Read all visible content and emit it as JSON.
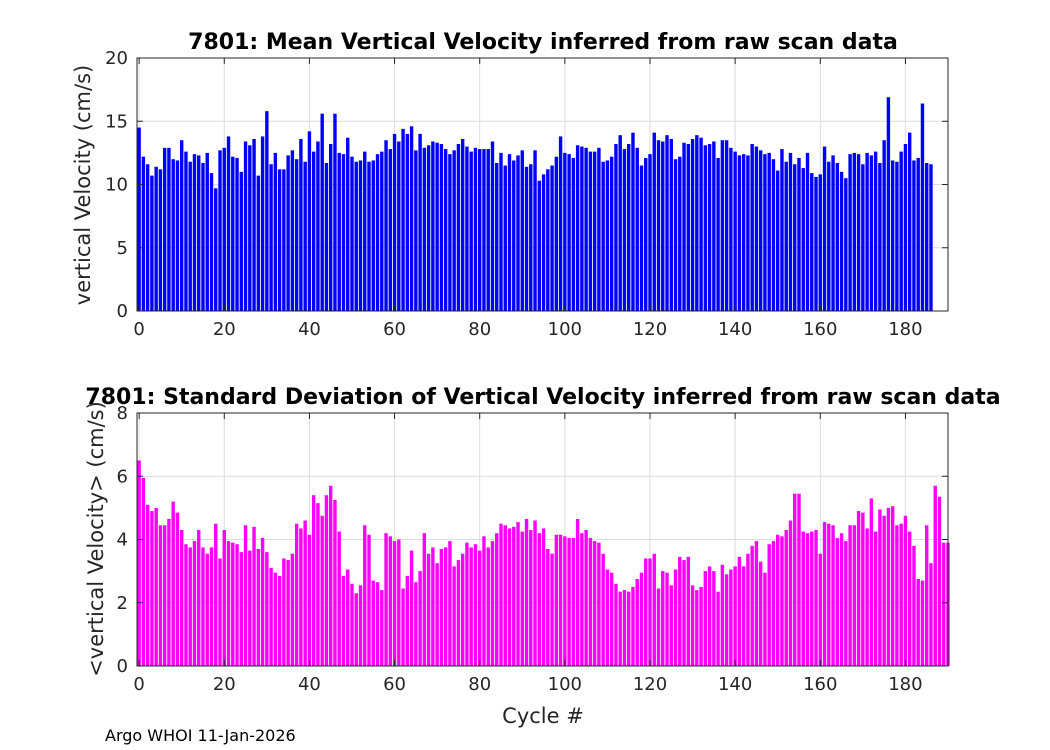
{
  "chart_data": [
    {
      "type": "bar",
      "title": "7801: Mean Vertical Velocity inferred from raw scan data",
      "xlabel": "",
      "ylabel": "vertical Velocity (cm/s)",
      "xlim": [
        -0.5,
        190
      ],
      "ylim": [
        0,
        20
      ],
      "xticks": [
        0,
        20,
        40,
        60,
        80,
        100,
        120,
        140,
        160,
        180
      ],
      "yticks": [
        0,
        5,
        10,
        15,
        20
      ],
      "grid": true,
      "color": "#0000ff",
      "x_start": 0,
      "values": [
        14.5,
        12.2,
        11.6,
        10.7,
        11.4,
        11.2,
        12.9,
        12.9,
        12.0,
        11.9,
        13.5,
        12.6,
        11.8,
        12.4,
        12.3,
        11.7,
        12.5,
        10.9,
        9.7,
        12.7,
        12.9,
        13.8,
        12.2,
        12.1,
        11.0,
        13.4,
        13.1,
        13.6,
        10.7,
        13.8,
        15.8,
        11.6,
        12.5,
        11.2,
        11.2,
        12.3,
        12.7,
        12.0,
        13.6,
        11.8,
        14.2,
        12.6,
        13.4,
        15.6,
        11.7,
        13.2,
        15.6,
        12.5,
        12.4,
        13.7,
        12.2,
        11.8,
        11.9,
        12.6,
        11.8,
        11.9,
        12.4,
        12.6,
        13.5,
        12.8,
        14.0,
        13.4,
        14.4,
        14.0,
        14.6,
        12.7,
        14.0,
        12.9,
        13.1,
        13.4,
        13.3,
        13.2,
        12.8,
        12.4,
        12.7,
        13.2,
        13.6,
        13.0,
        12.6,
        12.9,
        12.8,
        12.8,
        12.8,
        13.4,
        11.7,
        12.5,
        11.5,
        12.4,
        11.9,
        12.3,
        12.7,
        11.4,
        11.6,
        12.7,
        10.3,
        10.8,
        11.2,
        11.5,
        12.2,
        13.8,
        12.5,
        12.4,
        12.1,
        13.1,
        13.0,
        12.9,
        12.6,
        12.6,
        12.9,
        11.8,
        11.9,
        12.2,
        13.2,
        13.9,
        12.8,
        13.2,
        14.1,
        12.9,
        11.5,
        12.1,
        12.4,
        14.1,
        13.5,
        13.4,
        13.9,
        13.6,
        12.0,
        12.2,
        13.3,
        13.2,
        13.6,
        13.9,
        13.7,
        13.1,
        13.2,
        13.4,
        12.1,
        13.5,
        13.5,
        12.9,
        12.6,
        12.3,
        12.4,
        12.3,
        13.2,
        13.0,
        12.7,
        12.4,
        12.5,
        12.0,
        11.1,
        12.8,
        11.8,
        12.5,
        11.6,
        12.1,
        11.3,
        12.5,
        10.9,
        10.6,
        10.8,
        13.0,
        11.8,
        12.3,
        11.7,
        11.0,
        10.5,
        12.4,
        12.5,
        12.4,
        11.6,
        12.5,
        12.3,
        12.6,
        11.7,
        13.5,
        16.9,
        11.9,
        11.8,
        12.6,
        13.2,
        14.1,
        11.9,
        12.1,
        16.4,
        11.7,
        11.6
      ]
    },
    {
      "type": "bar",
      "title": "7801: Standard Deviation of Vertical Velocity inferred from raw scan data",
      "xlabel": "Cycle #",
      "ylabel": "<vertical Velocity> (cm/s)",
      "xlim": [
        -0.5,
        190
      ],
      "ylim": [
        0,
        8
      ],
      "xticks": [
        0,
        20,
        40,
        60,
        80,
        100,
        120,
        140,
        160,
        180
      ],
      "yticks": [
        0,
        2,
        4,
        6,
        8
      ],
      "grid": true,
      "color": "#ff00ff",
      "x_start": 0,
      "values": [
        6.5,
        5.95,
        5.1,
        4.9,
        5.0,
        4.45,
        4.45,
        4.65,
        5.2,
        4.85,
        4.3,
        3.85,
        3.75,
        3.95,
        4.3,
        3.75,
        3.55,
        3.75,
        4.5,
        3.4,
        4.3,
        3.95,
        3.9,
        3.85,
        3.6,
        4.45,
        3.65,
        4.4,
        3.7,
        4.05,
        3.6,
        3.1,
        2.95,
        2.85,
        3.4,
        3.35,
        3.55,
        4.5,
        4.35,
        4.6,
        4.15,
        5.4,
        5.15,
        4.75,
        5.4,
        5.7,
        5.25,
        4.25,
        2.85,
        3.05,
        2.6,
        2.3,
        2.55,
        4.45,
        4.15,
        2.7,
        2.65,
        2.4,
        4.2,
        4.1,
        3.95,
        4.0,
        2.45,
        2.85,
        3.65,
        2.65,
        3.0,
        4.2,
        3.55,
        3.75,
        3.25,
        3.7,
        3.75,
        3.95,
        3.15,
        3.35,
        3.55,
        3.9,
        3.75,
        3.85,
        3.65,
        4.1,
        3.75,
        3.95,
        4.2,
        4.5,
        4.45,
        4.35,
        4.4,
        4.55,
        4.25,
        4.65,
        4.3,
        4.6,
        4.2,
        4.35,
        3.7,
        3.55,
        4.15,
        4.15,
        4.1,
        4.05,
        4.05,
        4.65,
        4.2,
        4.3,
        4.05,
        3.95,
        3.9,
        3.55,
        3.05,
        2.95,
        2.6,
        2.35,
        2.4,
        2.35,
        2.5,
        2.75,
        2.95,
        3.4,
        3.4,
        3.55,
        2.45,
        3.0,
        2.95,
        2.55,
        3.05,
        3.45,
        3.35,
        3.45,
        2.55,
        2.4,
        2.5,
        3.0,
        3.15,
        3.0,
        2.35,
        3.2,
        2.9,
        3.05,
        3.15,
        3.45,
        3.15,
        3.55,
        3.8,
        3.95,
        3.3,
        2.95,
        3.85,
        3.95,
        4.15,
        4.1,
        4.3,
        4.6,
        5.45,
        5.45,
        4.25,
        4.2,
        4.25,
        4.3,
        3.55,
        4.55,
        4.5,
        4.45,
        4.05,
        4.2,
        3.95,
        4.45,
        4.45,
        4.9,
        4.85,
        4.35,
        5.3,
        4.25,
        4.95,
        4.75,
        5.0,
        5.05,
        4.45,
        4.5,
        4.75,
        4.25,
        3.8,
        2.75,
        2.7,
        4.45,
        3.25,
        5.7,
        5.35,
        3.9,
        3.9
      ]
    }
  ],
  "footer": {
    "text": "Argo WHOI 11-Jan-2026"
  }
}
